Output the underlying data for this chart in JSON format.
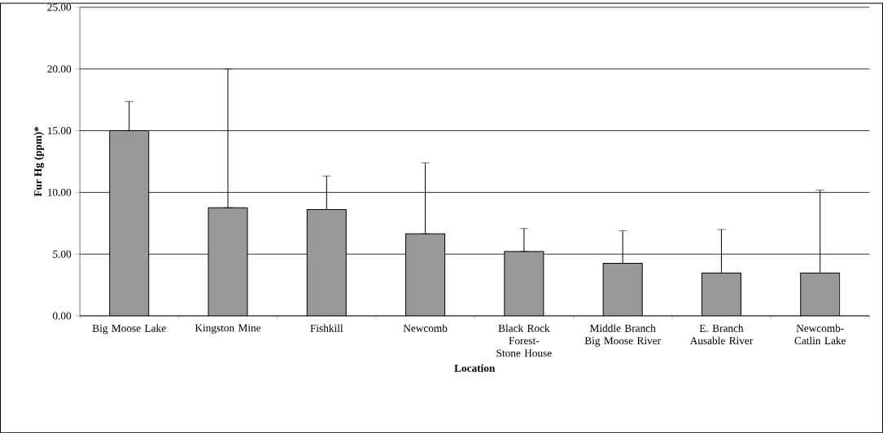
{
  "chart_data": {
    "type": "bar",
    "xlabel": "Location",
    "ylabel": "Fur Hg (ppm)*",
    "categories": [
      "Big Moose Lake",
      "Kingston Mine",
      "Fishkill",
      "Newcomb",
      "Black Rock Forest-Stone House",
      "Middle Branch Big Moose River",
      "E. Branch Ausable River",
      "Newcomb-Catlin Lake"
    ],
    "values": [
      15.0,
      8.76,
      8.61,
      6.65,
      5.21,
      4.25,
      3.46,
      3.46
    ],
    "errors": [
      [
        15.0,
        17.37
      ],
      [
        8.76,
        20.0
      ],
      [
        8.61,
        11.33
      ],
      [
        6.65,
        12.4
      ],
      [
        5.21,
        7.08
      ],
      [
        4.25,
        6.9
      ],
      [
        3.46,
        6.99
      ],
      [
        3.46,
        10.18
      ]
    ],
    "color": "#999999",
    "ylim": [
      0,
      25
    ],
    "yticks": [
      {
        "value": 0,
        "label": "0.00"
      },
      {
        "value": 5,
        "label": "5.00"
      },
      {
        "value": 10,
        "label": "10.00"
      },
      {
        "value": 15,
        "label": "15.00"
      },
      {
        "value": 20,
        "label": "20.00"
      },
      {
        "value": 25,
        "label": "25.00"
      }
    ],
    "grid": "y"
  }
}
